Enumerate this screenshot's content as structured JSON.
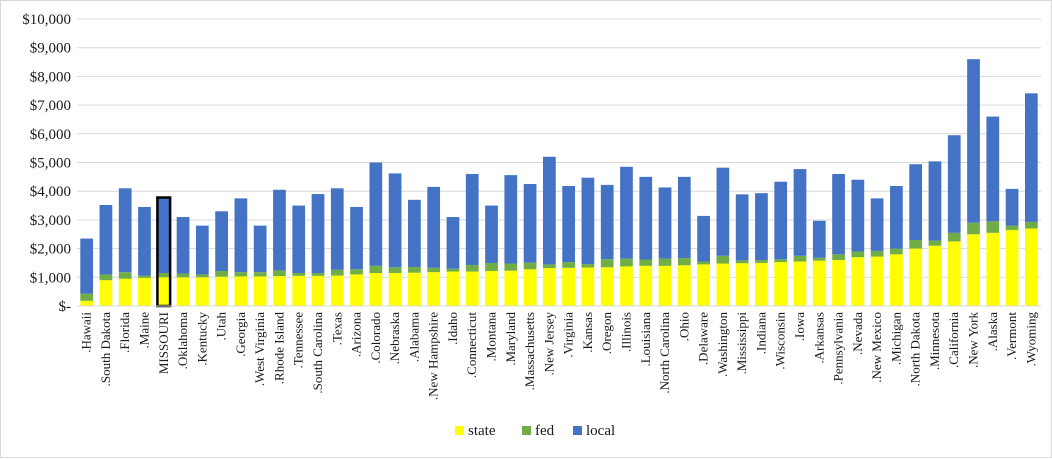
{
  "chart_data": {
    "type": "bar",
    "stacked": true,
    "ylim": [
      0,
      10000
    ],
    "y_ticks": [
      {
        "value": 0,
        "label": "$-"
      },
      {
        "value": 1000,
        "label": "$1,000"
      },
      {
        "value": 2000,
        "label": "$2,000"
      },
      {
        "value": 3000,
        "label": "$3,000"
      },
      {
        "value": 4000,
        "label": "$4,000"
      },
      {
        "value": 5000,
        "label": "$5,000"
      },
      {
        "value": 6000,
        "label": "$6,000"
      },
      {
        "value": 7000,
        "label": "$7,000"
      },
      {
        "value": 8000,
        "label": "$8,000"
      },
      {
        "value": 9000,
        "label": "$9,000"
      },
      {
        "value": 10000,
        "label": "$10,000"
      }
    ],
    "grid": true,
    "legend_position": "bottom",
    "highlight_category": "MISSOURI",
    "categories": [
      ".Hawaii",
      ".South Dakota",
      ".Florida",
      ".Maine",
      "MISSOURI",
      ".Oklahoma",
      ".Kentucky",
      ".Utah",
      ".Georgia",
      ".West Virginia",
      ".Rhode Island",
      ".Tennessee",
      ".South Carolina",
      ".Texas",
      ".Arizona",
      ".Colorado",
      ".Nebraska",
      ".Alabama",
      ".New Hampshire",
      ".Idaho",
      ".Connecticut",
      ".Montana",
      ".Maryland",
      ".Massachusetts",
      ".New Jersey",
      ".Virginia",
      ".Kansas",
      ".Oregon",
      ".Illinois",
      ".Louisiana",
      ".North Carolina",
      ".Ohio",
      ".Delaware",
      ".Washington",
      ".Mississippi",
      ".Indiana",
      ".Wisconsin",
      ".Iowa",
      ".Arkansas",
      ".Pennsylvania",
      ".Nevada",
      ".New Mexico",
      ".Michigan",
      ".North Dakota",
      ".Minnesota",
      ".California",
      ".New York",
      ".Alaska",
      ".Vermont",
      ".Wyoming"
    ],
    "series": [
      {
        "name": "state",
        "color": "#ffff00",
        "values": [
          180,
          900,
          950,
          980,
          1000,
          1000,
          1000,
          1020,
          1030,
          1030,
          1040,
          1050,
          1050,
          1060,
          1100,
          1150,
          1150,
          1160,
          1180,
          1200,
          1200,
          1220,
          1230,
          1280,
          1320,
          1330,
          1340,
          1350,
          1380,
          1400,
          1400,
          1420,
          1450,
          1480,
          1490,
          1500,
          1530,
          1550,
          1580,
          1600,
          1700,
          1720,
          1800,
          2000,
          2100,
          2250,
          2500,
          2550,
          2650,
          2700
        ]
      },
      {
        "name": "fed",
        "color": "#70ad47",
        "values": [
          250,
          200,
          230,
          80,
          150,
          130,
          100,
          200,
          150,
          150,
          200,
          100,
          100,
          200,
          180,
          250,
          200,
          200,
          150,
          100,
          230,
          280,
          250,
          230,
          130,
          200,
          120,
          280,
          270,
          220,
          250,
          250,
          100,
          270,
          100,
          100,
          100,
          200,
          100,
          200,
          200,
          200,
          200,
          300,
          180,
          300,
          400,
          400,
          150,
          230
        ]
      },
      {
        "name": "local",
        "color": "#4472c4",
        "values": [
          1920,
          2420,
          2920,
          2390,
          2630,
          1970,
          1700,
          2080,
          2570,
          1620,
          2810,
          2350,
          2750,
          2840,
          2170,
          3600,
          3270,
          2340,
          2820,
          1800,
          3170,
          2000,
          3080,
          2740,
          3750,
          2650,
          3010,
          2590,
          3200,
          2880,
          2480,
          2830,
          1590,
          3070,
          2300,
          2330,
          2700,
          3020,
          1290,
          2800,
          2500,
          1830,
          2180,
          2640,
          2760,
          3400,
          5700,
          3650,
          1280,
          4480
        ]
      }
    ]
  }
}
